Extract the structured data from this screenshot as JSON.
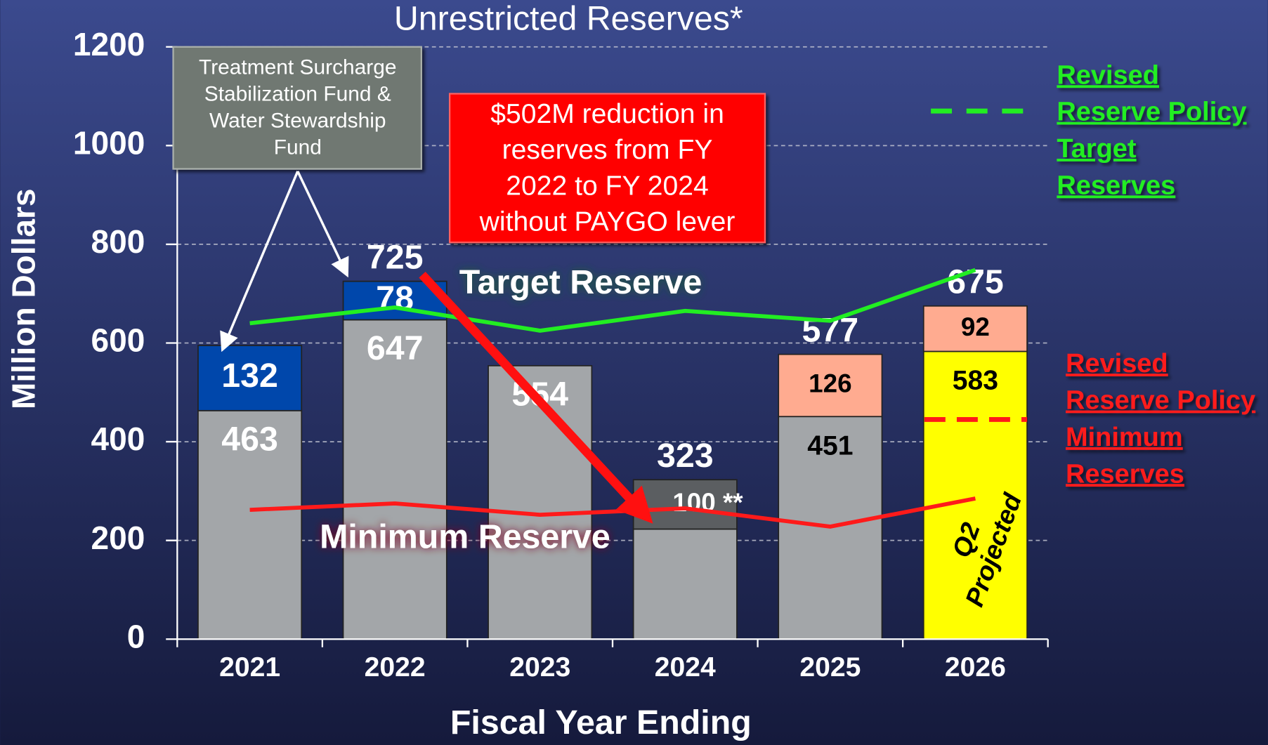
{
  "chart_data": {
    "type": "bar",
    "stacked": true,
    "title": "Unrestricted Reserves*",
    "y_label": "Million Dollars",
    "x_label": "Fiscal Year Ending",
    "categories": [
      "2021",
      "2022",
      "2023",
      "2024",
      "2025",
      "2026"
    ],
    "ylim": [
      0,
      1200
    ],
    "yticks": [
      0,
      200,
      400,
      600,
      800,
      1000,
      1200
    ],
    "grid": true,
    "series": [
      {
        "colors": [
          "#a3a6a9",
          "#a3a6a9",
          "#a3a6a9",
          "#a3a6a9",
          "#a3a6a9",
          "#ffff00"
        ],
        "values": [
          463,
          647,
          554,
          223,
          451,
          583
        ],
        "value_labels": [
          "463",
          "647",
          "554",
          null,
          "451",
          "583"
        ],
        "label_colors": [
          "#ffffff",
          "#ffffff",
          "#ffffff",
          "#ffffff",
          "#000000",
          "#000000"
        ]
      },
      {
        "colors": [
          "#0047ab",
          "#0047ab",
          null,
          "#5b5e61",
          "#ffab90",
          "#ffab90"
        ],
        "values": [
          132,
          78,
          null,
          100,
          126,
          92
        ],
        "value_labels": [
          "132",
          "78",
          null,
          "100 **",
          "126",
          "92"
        ],
        "label_colors": [
          "#ffffff",
          "#ffffff",
          null,
          "#ffffff",
          "#000000",
          "#000000"
        ]
      }
    ],
    "total_labels": [
      null,
      725,
      null,
      323,
      577,
      675
    ],
    "lines": [
      {
        "name": "Target Reserve",
        "color": "#22ee22",
        "values": [
          640,
          672,
          625,
          665,
          645,
          748
        ]
      },
      {
        "name": "Minimum Reserve",
        "color": "#ff1a1a",
        "values": [
          262,
          275,
          252,
          265,
          228,
          285
        ]
      }
    ],
    "revised_target": 1070,
    "revised_minimum": 445,
    "legend_target": [
      "Revised",
      "Reserve Policy",
      "Target",
      "Reserves"
    ],
    "legend_minimum": [
      "Revised",
      "Reserve Policy",
      "Minimum",
      "Reserves"
    ],
    "fund_note": [
      "Treatment Surcharge",
      "Stabilization Fund &",
      "Water Stewardship",
      "Fund"
    ],
    "reduction_note": [
      "$502M reduction in",
      "reserves from FY",
      "2022 to FY 2024",
      "without PAYGO lever"
    ],
    "projection_note": [
      "Q2",
      "Projected"
    ]
  }
}
